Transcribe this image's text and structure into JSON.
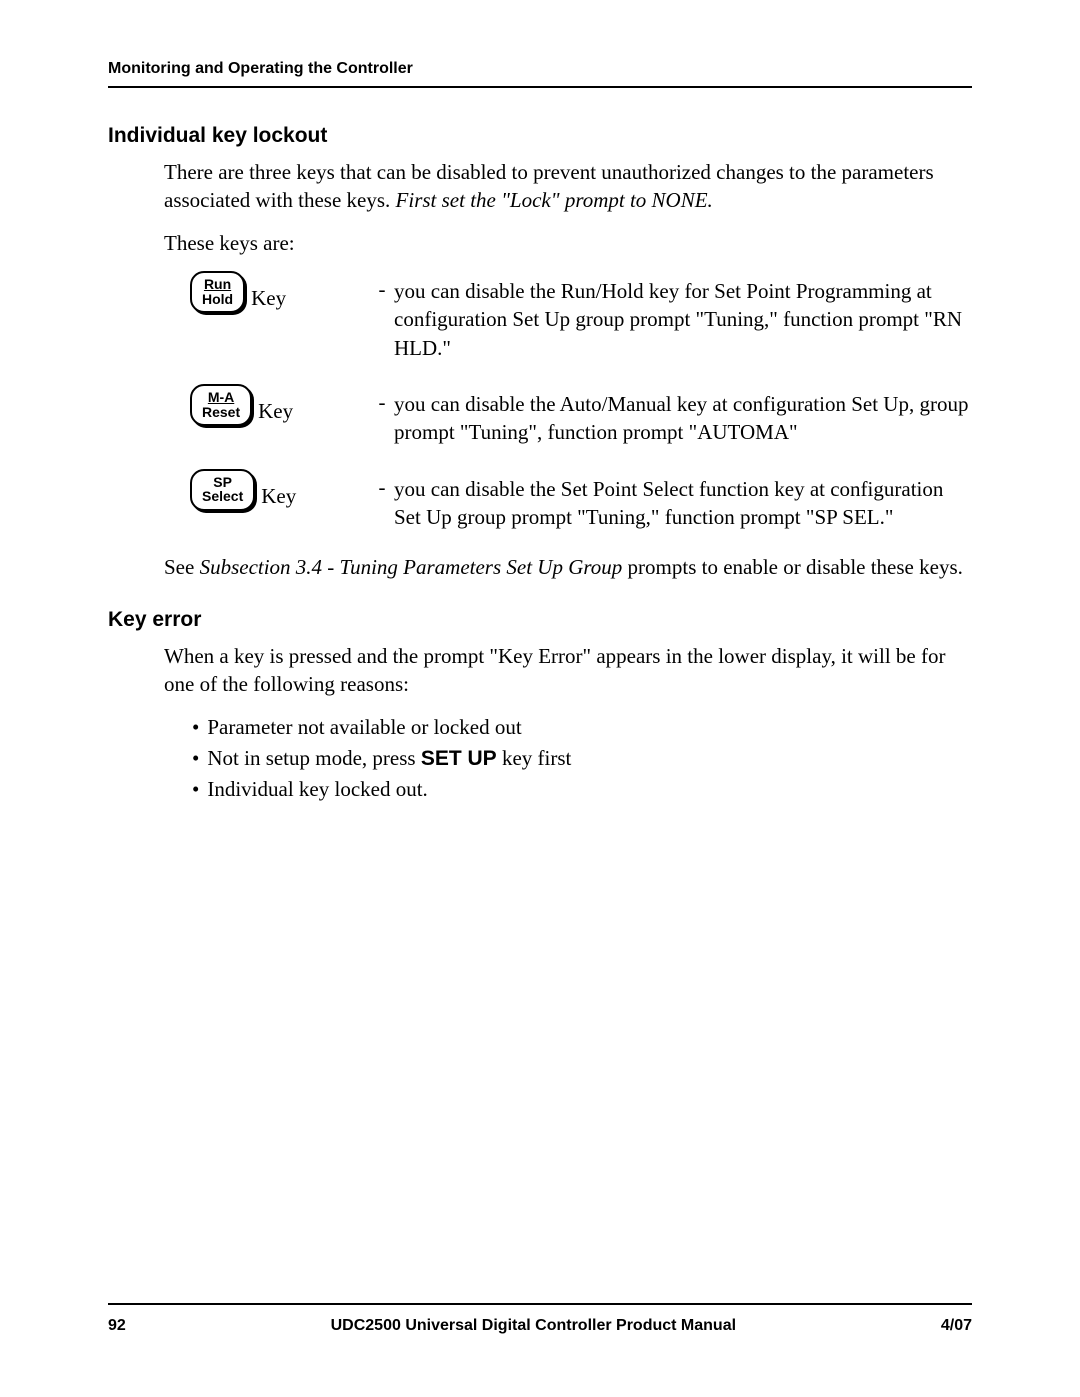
{
  "header": {
    "running_title": "Monitoring and Operating the Controller"
  },
  "section1": {
    "heading": "Individual key lockout",
    "para1_a": "There are three keys that can be disabled to prevent unauthorized changes to the parameters associated with these keys. ",
    "para1_b_italic": "First set the \"Lock\" prompt to NONE.",
    "para2": "These keys are:",
    "keys": [
      {
        "btn_top": "Run",
        "btn_bottom": "Hold",
        "word": "Key",
        "dash": "-",
        "desc": "you can disable the Run/Hold key for Set Point Programming at configuration Set Up group prompt \"Tuning,\" function prompt \"RN HLD.\""
      },
      {
        "btn_top": "M-A",
        "btn_bottom": "Reset",
        "word": "Key",
        "dash": "-",
        "desc": "you can disable the Auto/Manual key at configuration Set Up, group prompt \"Tuning\", function prompt \"AUTOMA\""
      },
      {
        "btn_top": "SP",
        "btn_bottom": "Select",
        "word": "Key",
        "dash": "-",
        "desc": "you can disable the Set Point Select function key at configuration Set Up group prompt \"Tuning,\" function prompt \"SP SEL.\""
      }
    ],
    "closing_a": "See ",
    "closing_b_italic": "Subsection 3.4  - Tuning Parameters Set Up Group",
    "closing_c": " prompts to enable or disable these keys."
  },
  "section2": {
    "heading": "Key error",
    "para1": "When a key is pressed and the prompt \"Key Error\" appears in the lower display, it will be for one of the following reasons:",
    "bullets": [
      {
        "dot": "•",
        "text_a": "Parameter not available or locked out",
        "text_b_bold": "",
        "text_c": ""
      },
      {
        "dot": "•",
        "text_a": "Not in setup mode, press ",
        "text_b_bold": "SET UP",
        "text_c": " key first"
      },
      {
        "dot": "•",
        "text_a": "Individual key locked out.",
        "text_b_bold": "",
        "text_c": ""
      }
    ]
  },
  "footer": {
    "page_num": "92",
    "center": "UDC2500 Universal Digital Controller Product Manual",
    "right": "4/07"
  }
}
